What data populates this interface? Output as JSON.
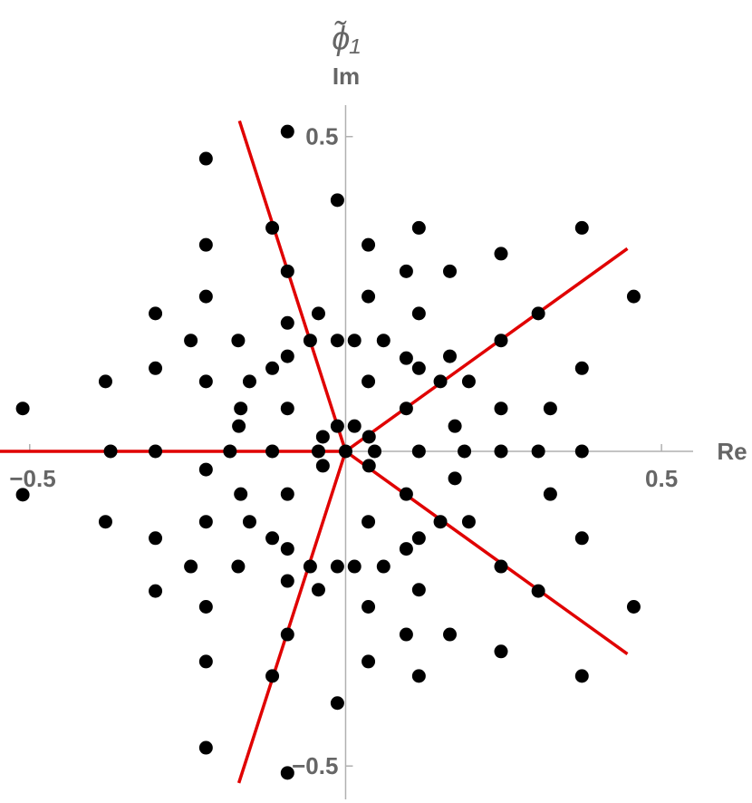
{
  "chart_data": {
    "type": "scatter",
    "title": "ϕ̃₁",
    "xlabel": "Re",
    "ylabel": "Im",
    "xlim": [
      -0.547,
      0.55
    ],
    "ylim": [
      -0.553,
      0.55
    ],
    "xticks": [
      {
        "value": -0.5,
        "label": "−0.5"
      },
      0.5
    ],
    "yticks": [
      {
        "value": -0.5,
        "label": "−0.5"
      },
      0.5
    ],
    "color": "#000000",
    "x": [
      -0.092,
      -0.221,
      -0.013,
      -0.116,
      0.116,
      0.374,
      -0.221,
      0.036,
      0.246,
      -0.092,
      0.096,
      0.165,
      0.456,
      -0.221,
      0.036,
      -0.301,
      -0.043,
      0.116,
      0.305,
      -0.092,
      -0.245,
      -0.17,
      -0.056,
      -0.013,
      0.014,
      0.06,
      0.246,
      -0.116,
      -0.092,
      0.096,
      0.165,
      -0.301,
      0.374,
      -0.38,
      -0.221,
      -0.152,
      0.036,
      0.116,
      0.15,
      0.195,
      -0.166,
      -0.092,
      0.096,
      0.246,
      0.324,
      -0.511,
      -0.169,
      -0.013,
      0.014,
      0.173,
      -0.036,
      0.037,
      -0.372,
      -0.301,
      -0.183,
      -0.116,
      -0.043,
      0.046,
      0.116,
      0.188,
      0.246,
      0.305,
      0.374,
      -0.036,
      0.037,
      -0.221,
      0.173,
      -0.166,
      -0.092,
      0.096,
      0.324,
      -0.511,
      -0.38,
      -0.221,
      -0.152,
      0.036,
      0.15,
      0.195,
      -0.301,
      -0.116,
      0.116,
      0.374,
      -0.092,
      0.096,
      -0.245,
      -0.17,
      -0.056,
      -0.013,
      0.014,
      0.06,
      0.246,
      -0.043,
      -0.092,
      0.116,
      -0.301,
      0.305,
      -0.221,
      0.036,
      0.456,
      -0.092,
      0.096,
      0.165,
      -0.221,
      0.036,
      0.246,
      -0.116,
      0.116,
      0.374,
      -0.013,
      -0.221,
      -0.092,
      0
    ],
    "y": [
      0.508,
      0.465,
      0.399,
      0.355,
      0.355,
      0.355,
      0.328,
      0.328,
      0.314,
      0.286,
      0.286,
      0.286,
      0.246,
      0.246,
      0.246,
      0.219,
      0.219,
      0.219,
      0.219,
      0.204,
      0.176,
      0.176,
      0.176,
      0.176,
      0.176,
      0.176,
      0.176,
      0.132,
      0.151,
      0.148,
      0.151,
      0.132,
      0.132,
      0.111,
      0.111,
      0.111,
      0.111,
      0.132,
      0.111,
      0.111,
      0.068,
      0.068,
      0.068,
      0.068,
      0.068,
      0.068,
      0.04,
      0.04,
      0.04,
      0.04,
      0.023,
      0.023,
      0,
      0,
      0,
      0,
      0,
      0,
      0,
      0,
      0,
      0,
      0,
      -0.023,
      -0.023,
      -0.029,
      -0.043,
      -0.068,
      -0.068,
      -0.068,
      -0.068,
      -0.069,
      -0.112,
      -0.112,
      -0.112,
      -0.112,
      -0.112,
      -0.112,
      -0.138,
      -0.138,
      -0.138,
      -0.138,
      -0.155,
      -0.155,
      -0.183,
      -0.183,
      -0.183,
      -0.183,
      -0.183,
      -0.183,
      -0.183,
      -0.22,
      -0.206,
      -0.22,
      -0.222,
      -0.222,
      -0.247,
      -0.247,
      -0.247,
      -0.291,
      -0.291,
      -0.291,
      -0.334,
      -0.334,
      -0.318,
      -0.357,
      -0.357,
      -0.357,
      -0.4,
      -0.471,
      -0.511,
      0
    ],
    "lines": [
      {
        "color": "#e00000",
        "x": [
          0,
          -0.168
        ],
        "y": [
          0,
          0.525
        ]
      },
      {
        "color": "#e00000",
        "x": [
          0,
          0.446
        ],
        "y": [
          0,
          0.322
        ]
      },
      {
        "color": "#e00000",
        "x": [
          0,
          0.446
        ],
        "y": [
          0,
          -0.322
        ]
      },
      {
        "color": "#e00000",
        "x": [
          0,
          -0.169
        ],
        "y": [
          0,
          -0.527
        ]
      },
      {
        "color": "#e00000",
        "x": [
          0,
          -0.547
        ],
        "y": [
          0,
          0
        ]
      }
    ]
  }
}
